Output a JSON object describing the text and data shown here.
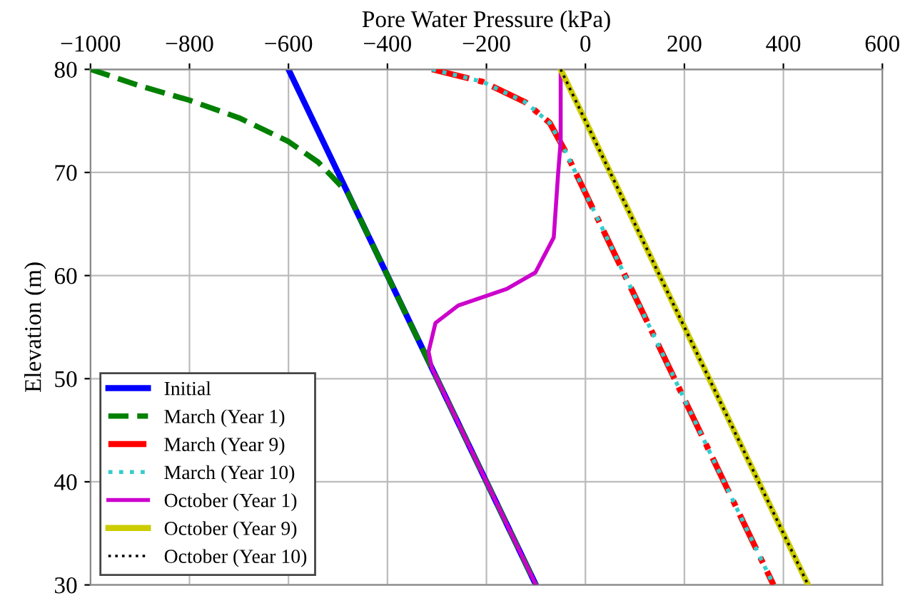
{
  "chart_data": {
    "type": "line",
    "xlabel": "Pore Water Pressure (kPa)",
    "ylabel": "Elevation (m)",
    "xlim": [
      -1000,
      600
    ],
    "xticks": [
      {
        "value": -1000,
        "label": "−1000"
      },
      {
        "value": -800,
        "label": "−800"
      },
      {
        "value": -600,
        "label": "−600"
      },
      {
        "value": -400,
        "label": "−400"
      },
      {
        "value": -200,
        "label": "−200"
      },
      0,
      200,
      400,
      600
    ],
    "ylim": [
      30,
      80
    ],
    "yticks": [
      30,
      40,
      50,
      60,
      70,
      80
    ],
    "grid": true,
    "legend": "bottom left",
    "series": [
      {
        "name": "Initial",
        "color": "#0000ff",
        "line_style": "solid",
        "x": [
          -600,
          -100
        ],
        "values": [
          80,
          30
        ]
      },
      {
        "name": "March (Year 1)",
        "color": "#008000",
        "line_style": "dashed",
        "x": [
          -1000,
          -900,
          -800,
          -700,
          -600,
          -540,
          -500,
          -480,
          -100
        ],
        "values": [
          80,
          78.4,
          77,
          75.3,
          73,
          71,
          69,
          68,
          30
        ]
      },
      {
        "name": "March (Year 9)",
        "color": "#ff0000",
        "line_style": "dashdot",
        "x": [
          -310,
          -208,
          -121,
          -72,
          -40,
          380
        ],
        "values": [
          80,
          78.8,
          76.8,
          74.8,
          72,
          30
        ]
      },
      {
        "name": "March (Year 10)",
        "color": "#33cccc",
        "line_style": "dotted",
        "x": [
          -310,
          -208,
          -121,
          -72,
          -40,
          380
        ],
        "values": [
          80,
          78.8,
          76.8,
          74.8,
          72,
          30
        ]
      },
      {
        "name": "October (Year 1)",
        "color": "#cc00cc",
        "line_style": "solid",
        "x": [
          -50,
          -50,
          -55,
          -64,
          -101,
          -159,
          -257,
          -303,
          -317,
          -310,
          -100
        ],
        "values": [
          80,
          73,
          70,
          63.7,
          60.3,
          58.7,
          57.1,
          55.4,
          52.6,
          51,
          30
        ]
      },
      {
        "name": "October (Year 9)",
        "color": "#cccc00",
        "line_style": "solid",
        "x": [
          -50,
          450
        ],
        "values": [
          80,
          30
        ]
      },
      {
        "name": "October (Year 10)",
        "color": "#000000",
        "line_style": "dotted",
        "x": [
          -50,
          450
        ],
        "values": [
          80,
          30
        ]
      }
    ]
  }
}
